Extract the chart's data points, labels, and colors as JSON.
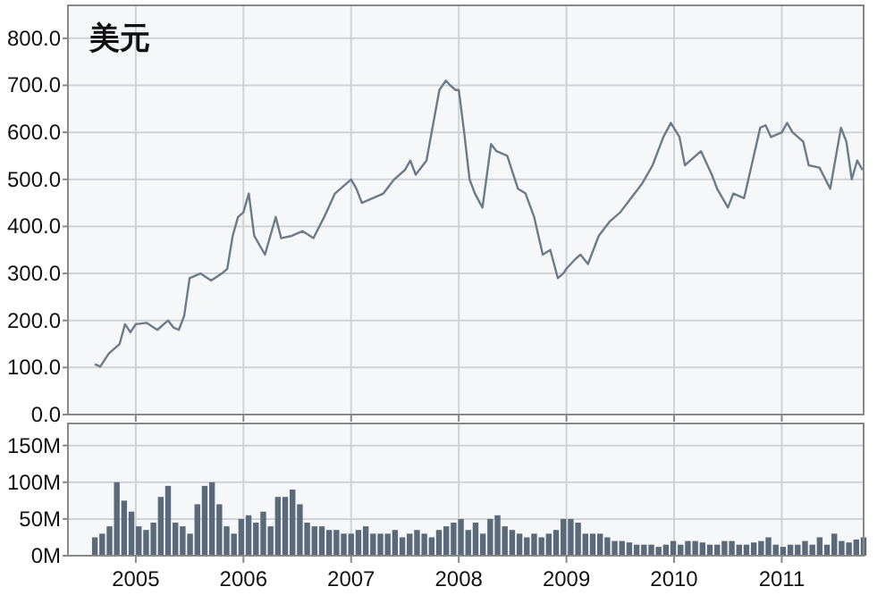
{
  "chart_data": [
    {
      "type": "line",
      "title": "美元",
      "grid": true,
      "tick_labels": "y",
      "xlim": [
        2004.37,
        2011.76
      ],
      "ylim": [
        0,
        870
      ],
      "xticks": [
        2005,
        2006,
        2007,
        2008,
        2009,
        2010,
        2011
      ],
      "yticks": [
        {
          "value": 0,
          "label": "0.0"
        },
        {
          "value": 100,
          "label": "100.0"
        },
        {
          "value": 200,
          "label": "200.0"
        },
        {
          "value": 300,
          "label": "300.0"
        },
        {
          "value": 400,
          "label": "400.0"
        },
        {
          "value": 500,
          "label": "500.0"
        },
        {
          "value": 600,
          "label": "600.0"
        },
        {
          "value": 700,
          "label": "700.0"
        },
        {
          "value": 800,
          "label": "800.0"
        }
      ],
      "series": [
        {
          "color": "#6b7b8c",
          "x": [
            2004.62,
            2004.67,
            2004.75,
            2004.85,
            2004.9,
            2004.95,
            2005.0,
            2005.1,
            2005.2,
            2005.3,
            2005.35,
            2005.4,
            2005.45,
            2005.5,
            2005.6,
            2005.7,
            2005.8,
            2005.85,
            2005.9,
            2005.95,
            2006.0,
            2006.05,
            2006.1,
            2006.15,
            2006.2,
            2006.3,
            2006.35,
            2006.45,
            2006.55,
            2006.65,
            2006.75,
            2006.85,
            2006.95,
            2007.0,
            2007.05,
            2007.1,
            2007.2,
            2007.3,
            2007.4,
            2007.5,
            2007.55,
            2007.6,
            2007.7,
            2007.78,
            2007.82,
            2007.88,
            2007.92,
            2007.97,
            2008.0,
            2008.05,
            2008.1,
            2008.15,
            2008.22,
            2008.3,
            2008.35,
            2008.45,
            2008.55,
            2008.62,
            2008.7,
            2008.78,
            2008.85,
            2008.92,
            2008.97,
            2009.0,
            2009.08,
            2009.13,
            2009.2,
            2009.3,
            2009.4,
            2009.5,
            2009.6,
            2009.7,
            2009.8,
            2009.9,
            2009.97,
            2010.05,
            2010.1,
            2010.2,
            2010.25,
            2010.35,
            2010.4,
            2010.5,
            2010.55,
            2010.65,
            2010.72,
            2010.8,
            2010.85,
            2010.9,
            2011.0,
            2011.05,
            2011.1,
            2011.2,
            2011.25,
            2011.35,
            2011.45,
            2011.55,
            2011.6,
            2011.65,
            2011.7,
            2011.75
          ],
          "values": [
            107,
            102,
            130,
            150,
            192,
            175,
            192,
            195,
            180,
            200,
            185,
            180,
            210,
            290,
            300,
            285,
            300,
            310,
            380,
            420,
            430,
            470,
            380,
            360,
            340,
            420,
            375,
            380,
            390,
            375,
            420,
            470,
            490,
            500,
            480,
            450,
            460,
            470,
            500,
            520,
            540,
            510,
            540,
            640,
            690,
            710,
            700,
            690,
            690,
            600,
            500,
            470,
            440,
            575,
            560,
            550,
            480,
            470,
            420,
            340,
            350,
            290,
            300,
            310,
            330,
            340,
            320,
            380,
            410,
            430,
            460,
            490,
            530,
            590,
            620,
            590,
            530,
            550,
            560,
            510,
            480,
            440,
            470,
            460,
            530,
            610,
            615,
            590,
            600,
            620,
            600,
            580,
            530,
            525,
            480,
            610,
            580,
            500,
            540,
            520
          ]
        }
      ]
    },
    {
      "type": "bar",
      "grid": true,
      "xlim": [
        2004.37,
        2011.76
      ],
      "ylim": [
        0,
        180
      ],
      "xticks": [
        2005,
        2006,
        2007,
        2008,
        2009,
        2010,
        2011
      ],
      "yticks": [
        {
          "value": 0,
          "label": "0M"
        },
        {
          "value": 50,
          "label": "50M"
        },
        {
          "value": 100,
          "label": "100M"
        },
        {
          "value": 150,
          "label": "150M"
        }
      ],
      "series": [
        {
          "color": "#5a6a7a",
          "x": [
            2004.62,
            2004.688,
            2004.756,
            2004.824,
            2004.892,
            2004.96,
            2005.028,
            2005.096,
            2005.164,
            2005.232,
            2005.3,
            2005.368,
            2005.436,
            2005.504,
            2005.572,
            2005.64,
            2005.708,
            2005.776,
            2005.844,
            2005.912,
            2005.98,
            2006.048,
            2006.116,
            2006.184,
            2006.252,
            2006.32,
            2006.388,
            2006.456,
            2006.524,
            2006.592,
            2006.66,
            2006.728,
            2006.796,
            2006.864,
            2006.932,
            2007.0,
            2007.068,
            2007.136,
            2007.204,
            2007.272,
            2007.34,
            2007.408,
            2007.476,
            2007.544,
            2007.612,
            2007.68,
            2007.748,
            2007.816,
            2007.884,
            2007.952,
            2008.02,
            2008.088,
            2008.156,
            2008.224,
            2008.292,
            2008.36,
            2008.428,
            2008.496,
            2008.564,
            2008.632,
            2008.7,
            2008.768,
            2008.836,
            2008.904,
            2008.972,
            2009.04,
            2009.108,
            2009.176,
            2009.244,
            2009.312,
            2009.38,
            2009.448,
            2009.516,
            2009.584,
            2009.652,
            2009.72,
            2009.788,
            2009.856,
            2009.924,
            2009.992,
            2010.06,
            2010.128,
            2010.196,
            2010.264,
            2010.332,
            2010.4,
            2010.468,
            2010.536,
            2010.604,
            2010.672,
            2010.74,
            2010.808,
            2010.876,
            2010.944,
            2011.012,
            2011.08,
            2011.148,
            2011.216,
            2011.284,
            2011.352,
            2011.42,
            2011.488,
            2011.556,
            2011.624,
            2011.692,
            2011.76
          ],
          "values": [
            25,
            30,
            40,
            100,
            75,
            60,
            40,
            35,
            45,
            80,
            95,
            45,
            40,
            30,
            70,
            95,
            100,
            70,
            40,
            30,
            50,
            55,
            45,
            60,
            40,
            80,
            80,
            90,
            70,
            45,
            40,
            40,
            35,
            35,
            30,
            30,
            35,
            40,
            30,
            30,
            30,
            35,
            25,
            30,
            35,
            30,
            25,
            35,
            40,
            45,
            50,
            35,
            45,
            30,
            50,
            55,
            40,
            35,
            30,
            25,
            30,
            25,
            30,
            35,
            50,
            50,
            45,
            30,
            30,
            30,
            25,
            20,
            20,
            18,
            15,
            15,
            15,
            12,
            15,
            20,
            15,
            20,
            20,
            18,
            15,
            15,
            20,
            20,
            15,
            15,
            18,
            20,
            25,
            15,
            12,
            15,
            15,
            20,
            15,
            25,
            15,
            30,
            20,
            18,
            22,
            25
          ]
        }
      ]
    }
  ]
}
